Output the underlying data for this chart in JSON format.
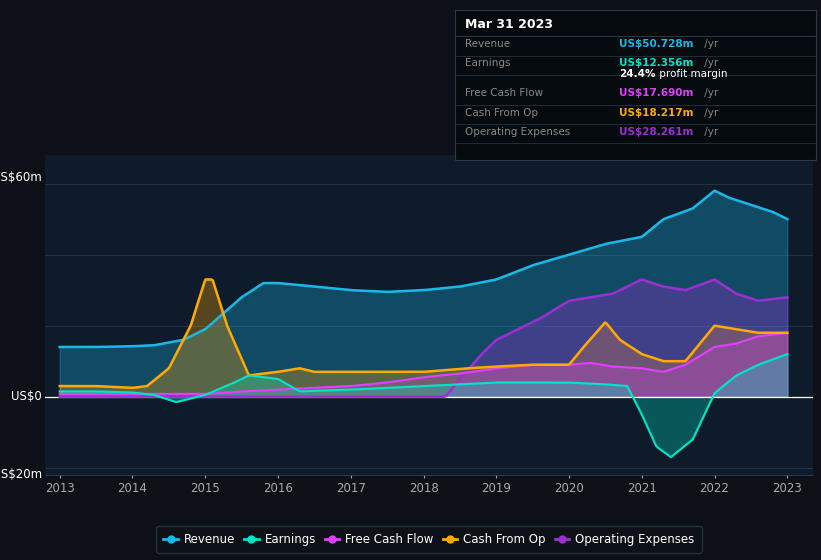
{
  "bg_color": "#0d1117",
  "plot_bg_color": "#0d1b2a",
  "colors": {
    "revenue": "#1ab8e8",
    "earnings": "#00e5c8",
    "free_cash_flow": "#e040fb",
    "cash_from_op": "#ffaa00",
    "operating_expenses": "#9b30d0"
  },
  "ylim": [
    -22,
    68
  ],
  "xlim": [
    2012.8,
    2023.35
  ]
}
